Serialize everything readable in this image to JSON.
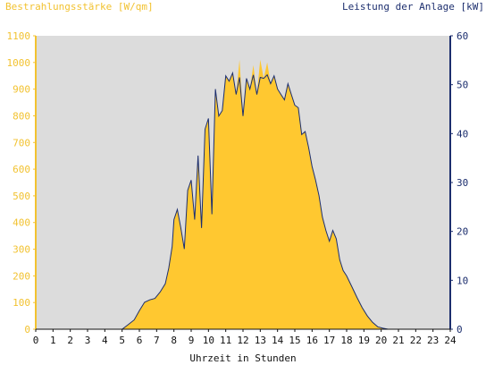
{
  "chart_data": {
    "type": "area",
    "left_axis_label": "Bestrahlungsstärke [W/qm]",
    "right_axis_label": "Leistung der Anlage [kW]",
    "xlabel": "Uhrzeit in Stunden",
    "xlim": [
      0,
      24
    ],
    "xticks": [
      "0",
      "1",
      "2",
      "3",
      "4",
      "5",
      "6",
      "7",
      "8",
      "9",
      "10",
      "11",
      "12",
      "13",
      "14",
      "15",
      "16",
      "17",
      "18",
      "19",
      "20",
      "21",
      "22",
      "23",
      "24"
    ],
    "ylim_left": [
      0,
      1100
    ],
    "yticks_left": [
      "0",
      "100",
      "200",
      "300",
      "400",
      "500",
      "600",
      "700",
      "800",
      "900",
      "1000",
      "1100"
    ],
    "ylim_right": [
      0,
      60
    ],
    "yticks_right": [
      "0",
      "10",
      "20",
      "30",
      "40",
      "50",
      "60"
    ],
    "grid": false,
    "colors": {
      "irradiance": "#ffc830",
      "power": "#1c2e6e",
      "plot_bg": "#dcdcdc",
      "left_axis": "#f2c230",
      "right_axis": "#1c2e6e"
    },
    "series": [
      {
        "name": "Bestrahlungsstärke [W/qm]",
        "axis": "left",
        "x": [
          0,
          5.0,
          5.3,
          5.7,
          6.0,
          6.3,
          6.6,
          6.9,
          7.2,
          7.5,
          7.7,
          7.9,
          8.0,
          8.2,
          8.4,
          8.6,
          8.8,
          9.0,
          9.2,
          9.4,
          9.6,
          9.8,
          10.0,
          10.2,
          10.4,
          10.6,
          10.8,
          11.0,
          11.2,
          11.4,
          11.6,
          11.8,
          12.0,
          12.2,
          12.4,
          12.6,
          12.8,
          13.0,
          13.2,
          13.4,
          13.6,
          13.8,
          14.0,
          14.2,
          14.4,
          14.6,
          14.8,
          15.0,
          15.2,
          15.4,
          15.6,
          15.8,
          16.0,
          16.2,
          16.4,
          16.6,
          16.8,
          17.0,
          17.2,
          17.4,
          17.6,
          17.8,
          18.0,
          18.3,
          18.6,
          18.9,
          19.2,
          19.5,
          19.8,
          20.1,
          20.4,
          20.8,
          21.2,
          24
        ],
        "values": [
          0,
          0,
          15,
          35,
          70,
          100,
          110,
          115,
          140,
          170,
          230,
          310,
          410,
          450,
          380,
          300,
          520,
          560,
          410,
          650,
          380,
          750,
          790,
          430,
          900,
          800,
          820,
          950,
          930,
          960,
          880,
          1010,
          800,
          940,
          900,
          990,
          880,
          1010,
          940,
          1000,
          920,
          950,
          900,
          880,
          860,
          920,
          880,
          840,
          830,
          730,
          740,
          680,
          610,
          560,
          500,
          420,
          370,
          330,
          370,
          340,
          260,
          220,
          200,
          160,
          120,
          80,
          50,
          25,
          10,
          3,
          0,
          0,
          0,
          0
        ]
      },
      {
        "name": "Leistung der Anlage [kW]",
        "axis": "right",
        "x": [
          0,
          5.0,
          5.3,
          5.7,
          6.0,
          6.3,
          6.6,
          6.9,
          7.2,
          7.5,
          7.7,
          7.9,
          8.0,
          8.2,
          8.4,
          8.6,
          8.8,
          9.0,
          9.2,
          9.4,
          9.6,
          9.8,
          10.0,
          10.2,
          10.4,
          10.6,
          10.8,
          11.0,
          11.2,
          11.4,
          11.6,
          11.8,
          12.0,
          12.2,
          12.4,
          12.6,
          12.8,
          13.0,
          13.2,
          13.4,
          13.6,
          13.8,
          14.0,
          14.2,
          14.4,
          14.6,
          14.8,
          15.0,
          15.2,
          15.4,
          15.6,
          15.8,
          16.0,
          16.2,
          16.4,
          16.6,
          16.8,
          17.0,
          17.2,
          17.4,
          17.6,
          17.8,
          18.0,
          18.3,
          18.6,
          18.9,
          19.2,
          19.5,
          19.8,
          20.1,
          20.4,
          20.8,
          21.2,
          24
        ],
        "values": [
          0,
          0,
          0.8,
          1.9,
          3.8,
          5.5,
          6.0,
          6.3,
          7.6,
          9.3,
          12.5,
          16.9,
          22.4,
          24.5,
          20.7,
          16.4,
          28.4,
          30.5,
          22.4,
          35.5,
          20.7,
          40.9,
          43.1,
          23.5,
          49.1,
          43.6,
          44.7,
          51.8,
          50.7,
          52.4,
          48.0,
          51.5,
          43.6,
          51.3,
          49.1,
          52.0,
          48.0,
          51.5,
          51.3,
          52.0,
          50.2,
          51.8,
          49.1,
          48.0,
          46.9,
          50.2,
          48.0,
          45.8,
          45.3,
          39.8,
          40.4,
          37.1,
          33.3,
          30.5,
          27.3,
          22.9,
          20.2,
          18.0,
          20.2,
          18.5,
          14.2,
          12.0,
          10.9,
          8.7,
          6.5,
          4.4,
          2.7,
          1.4,
          0.5,
          0.2,
          0,
          0,
          0,
          0
        ]
      }
    ]
  }
}
